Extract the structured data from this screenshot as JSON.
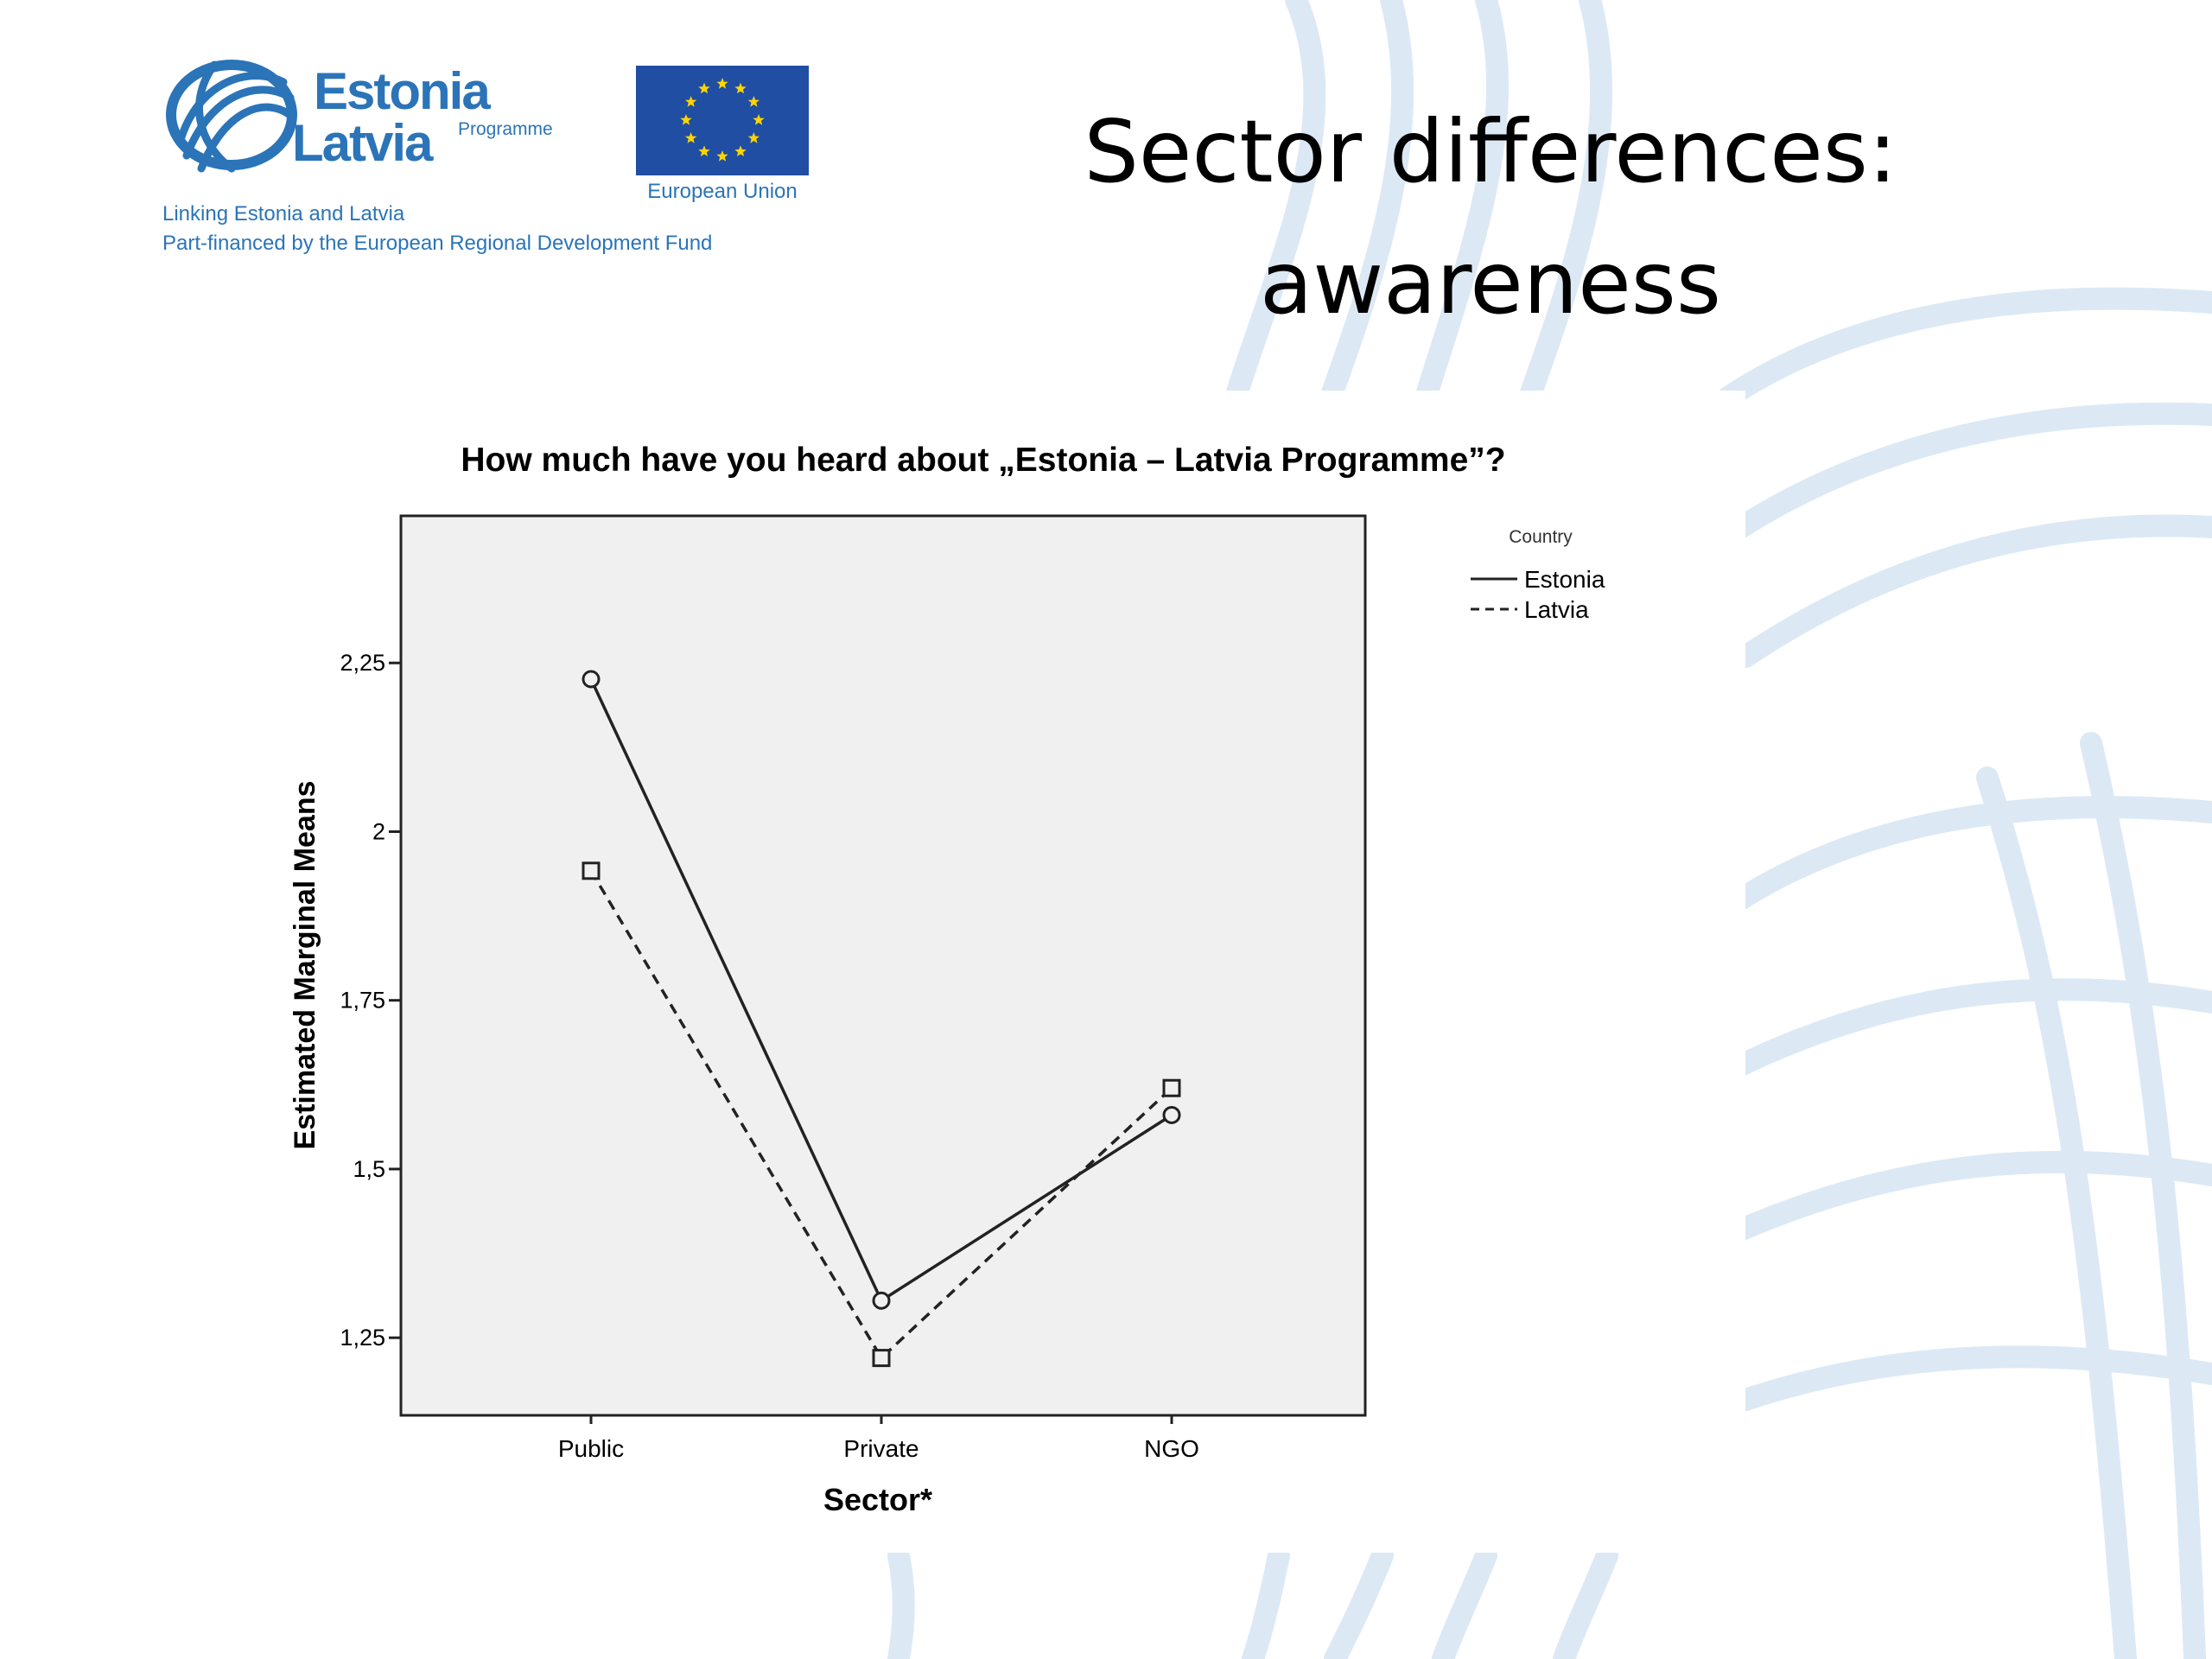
{
  "slide": {
    "title_line1": "Sector differences:",
    "title_line2": "awareness"
  },
  "logo": {
    "programme_name_1": "Estonia",
    "programme_name_2": "Latvia",
    "programme_word": "Programme",
    "eu_label": "European Union",
    "line1": "Linking Estonia and Latvia",
    "line2": "Part-financed by the European Regional Development Fund"
  },
  "colors": {
    "logo_blue": "#2b74b8",
    "eu_blue": "#1f4ea3",
    "eu_star": "#ffd400",
    "plot_background": "#f0f0f0",
    "background_swirl": "#dce9f5"
  },
  "chart_data": {
    "type": "line",
    "title": "How much have you heard about  „Estonia – Latvia Programme”?",
    "xlabel": "Sector*",
    "ylabel": "Estimated Marginal Means",
    "categories": [
      "Public",
      "Private",
      "NGO"
    ],
    "series": [
      {
        "name": "Estonia",
        "values": [
          2.226,
          1.305,
          1.58
        ],
        "line_style": "solid",
        "marker": "circle"
      },
      {
        "name": "Latvia",
        "values": [
          1.942,
          1.22,
          1.62
        ],
        "line_style": "dashed",
        "marker": "square"
      }
    ],
    "yticks": [
      1.25,
      1.5,
      1.75,
      2,
      2.25
    ],
    "ytick_labels": [
      "1,25",
      "1,5",
      "1,75",
      "2",
      "2,25"
    ],
    "ylim": [
      1.135,
      2.468
    ],
    "legend": {
      "title": "Country",
      "position": "right"
    },
    "grid": false
  }
}
